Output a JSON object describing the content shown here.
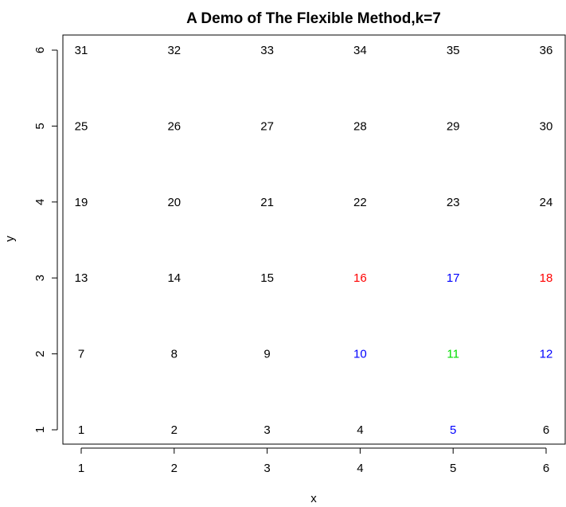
{
  "chart_data": {
    "type": "scatter",
    "title": "A Demo of The Flexible Method,k=7",
    "xlabel": "x",
    "ylabel": "y",
    "xlim": [
      1,
      6
    ],
    "ylim": [
      1,
      6
    ],
    "xticks": [
      1,
      2,
      3,
      4,
      5,
      6
    ],
    "yticks": [
      1,
      2,
      3,
      4,
      5,
      6
    ],
    "grid": false,
    "points": [
      {
        "x": 1,
        "y": 1,
        "label": "1",
        "color": "#000000"
      },
      {
        "x": 2,
        "y": 1,
        "label": "2",
        "color": "#000000"
      },
      {
        "x": 3,
        "y": 1,
        "label": "3",
        "color": "#000000"
      },
      {
        "x": 4,
        "y": 1,
        "label": "4",
        "color": "#000000"
      },
      {
        "x": 5,
        "y": 1,
        "label": "5",
        "color": "#0000ff"
      },
      {
        "x": 6,
        "y": 1,
        "label": "6",
        "color": "#000000"
      },
      {
        "x": 1,
        "y": 2,
        "label": "7",
        "color": "#000000"
      },
      {
        "x": 2,
        "y": 2,
        "label": "8",
        "color": "#000000"
      },
      {
        "x": 3,
        "y": 2,
        "label": "9",
        "color": "#000000"
      },
      {
        "x": 4,
        "y": 2,
        "label": "10",
        "color": "#0000ff"
      },
      {
        "x": 5,
        "y": 2,
        "label": "11",
        "color": "#00dd00"
      },
      {
        "x": 6,
        "y": 2,
        "label": "12",
        "color": "#0000ff"
      },
      {
        "x": 1,
        "y": 3,
        "label": "13",
        "color": "#000000"
      },
      {
        "x": 2,
        "y": 3,
        "label": "14",
        "color": "#000000"
      },
      {
        "x": 3,
        "y": 3,
        "label": "15",
        "color": "#000000"
      },
      {
        "x": 4,
        "y": 3,
        "label": "16",
        "color": "#ff0000"
      },
      {
        "x": 5,
        "y": 3,
        "label": "17",
        "color": "#0000ff"
      },
      {
        "x": 6,
        "y": 3,
        "label": "18",
        "color": "#ff0000"
      },
      {
        "x": 1,
        "y": 4,
        "label": "19",
        "color": "#000000"
      },
      {
        "x": 2,
        "y": 4,
        "label": "20",
        "color": "#000000"
      },
      {
        "x": 3,
        "y": 4,
        "label": "21",
        "color": "#000000"
      },
      {
        "x": 4,
        "y": 4,
        "label": "22",
        "color": "#000000"
      },
      {
        "x": 5,
        "y": 4,
        "label": "23",
        "color": "#000000"
      },
      {
        "x": 6,
        "y": 4,
        "label": "24",
        "color": "#000000"
      },
      {
        "x": 1,
        "y": 5,
        "label": "25",
        "color": "#000000"
      },
      {
        "x": 2,
        "y": 5,
        "label": "26",
        "color": "#000000"
      },
      {
        "x": 3,
        "y": 5,
        "label": "27",
        "color": "#000000"
      },
      {
        "x": 4,
        "y": 5,
        "label": "28",
        "color": "#000000"
      },
      {
        "x": 5,
        "y": 5,
        "label": "29",
        "color": "#000000"
      },
      {
        "x": 6,
        "y": 5,
        "label": "30",
        "color": "#000000"
      },
      {
        "x": 1,
        "y": 6,
        "label": "31",
        "color": "#000000"
      },
      {
        "x": 2,
        "y": 6,
        "label": "32",
        "color": "#000000"
      },
      {
        "x": 3,
        "y": 6,
        "label": "33",
        "color": "#000000"
      },
      {
        "x": 4,
        "y": 6,
        "label": "34",
        "color": "#000000"
      },
      {
        "x": 5,
        "y": 6,
        "label": "35",
        "color": "#000000"
      },
      {
        "x": 6,
        "y": 6,
        "label": "36",
        "color": "#000000"
      }
    ]
  }
}
